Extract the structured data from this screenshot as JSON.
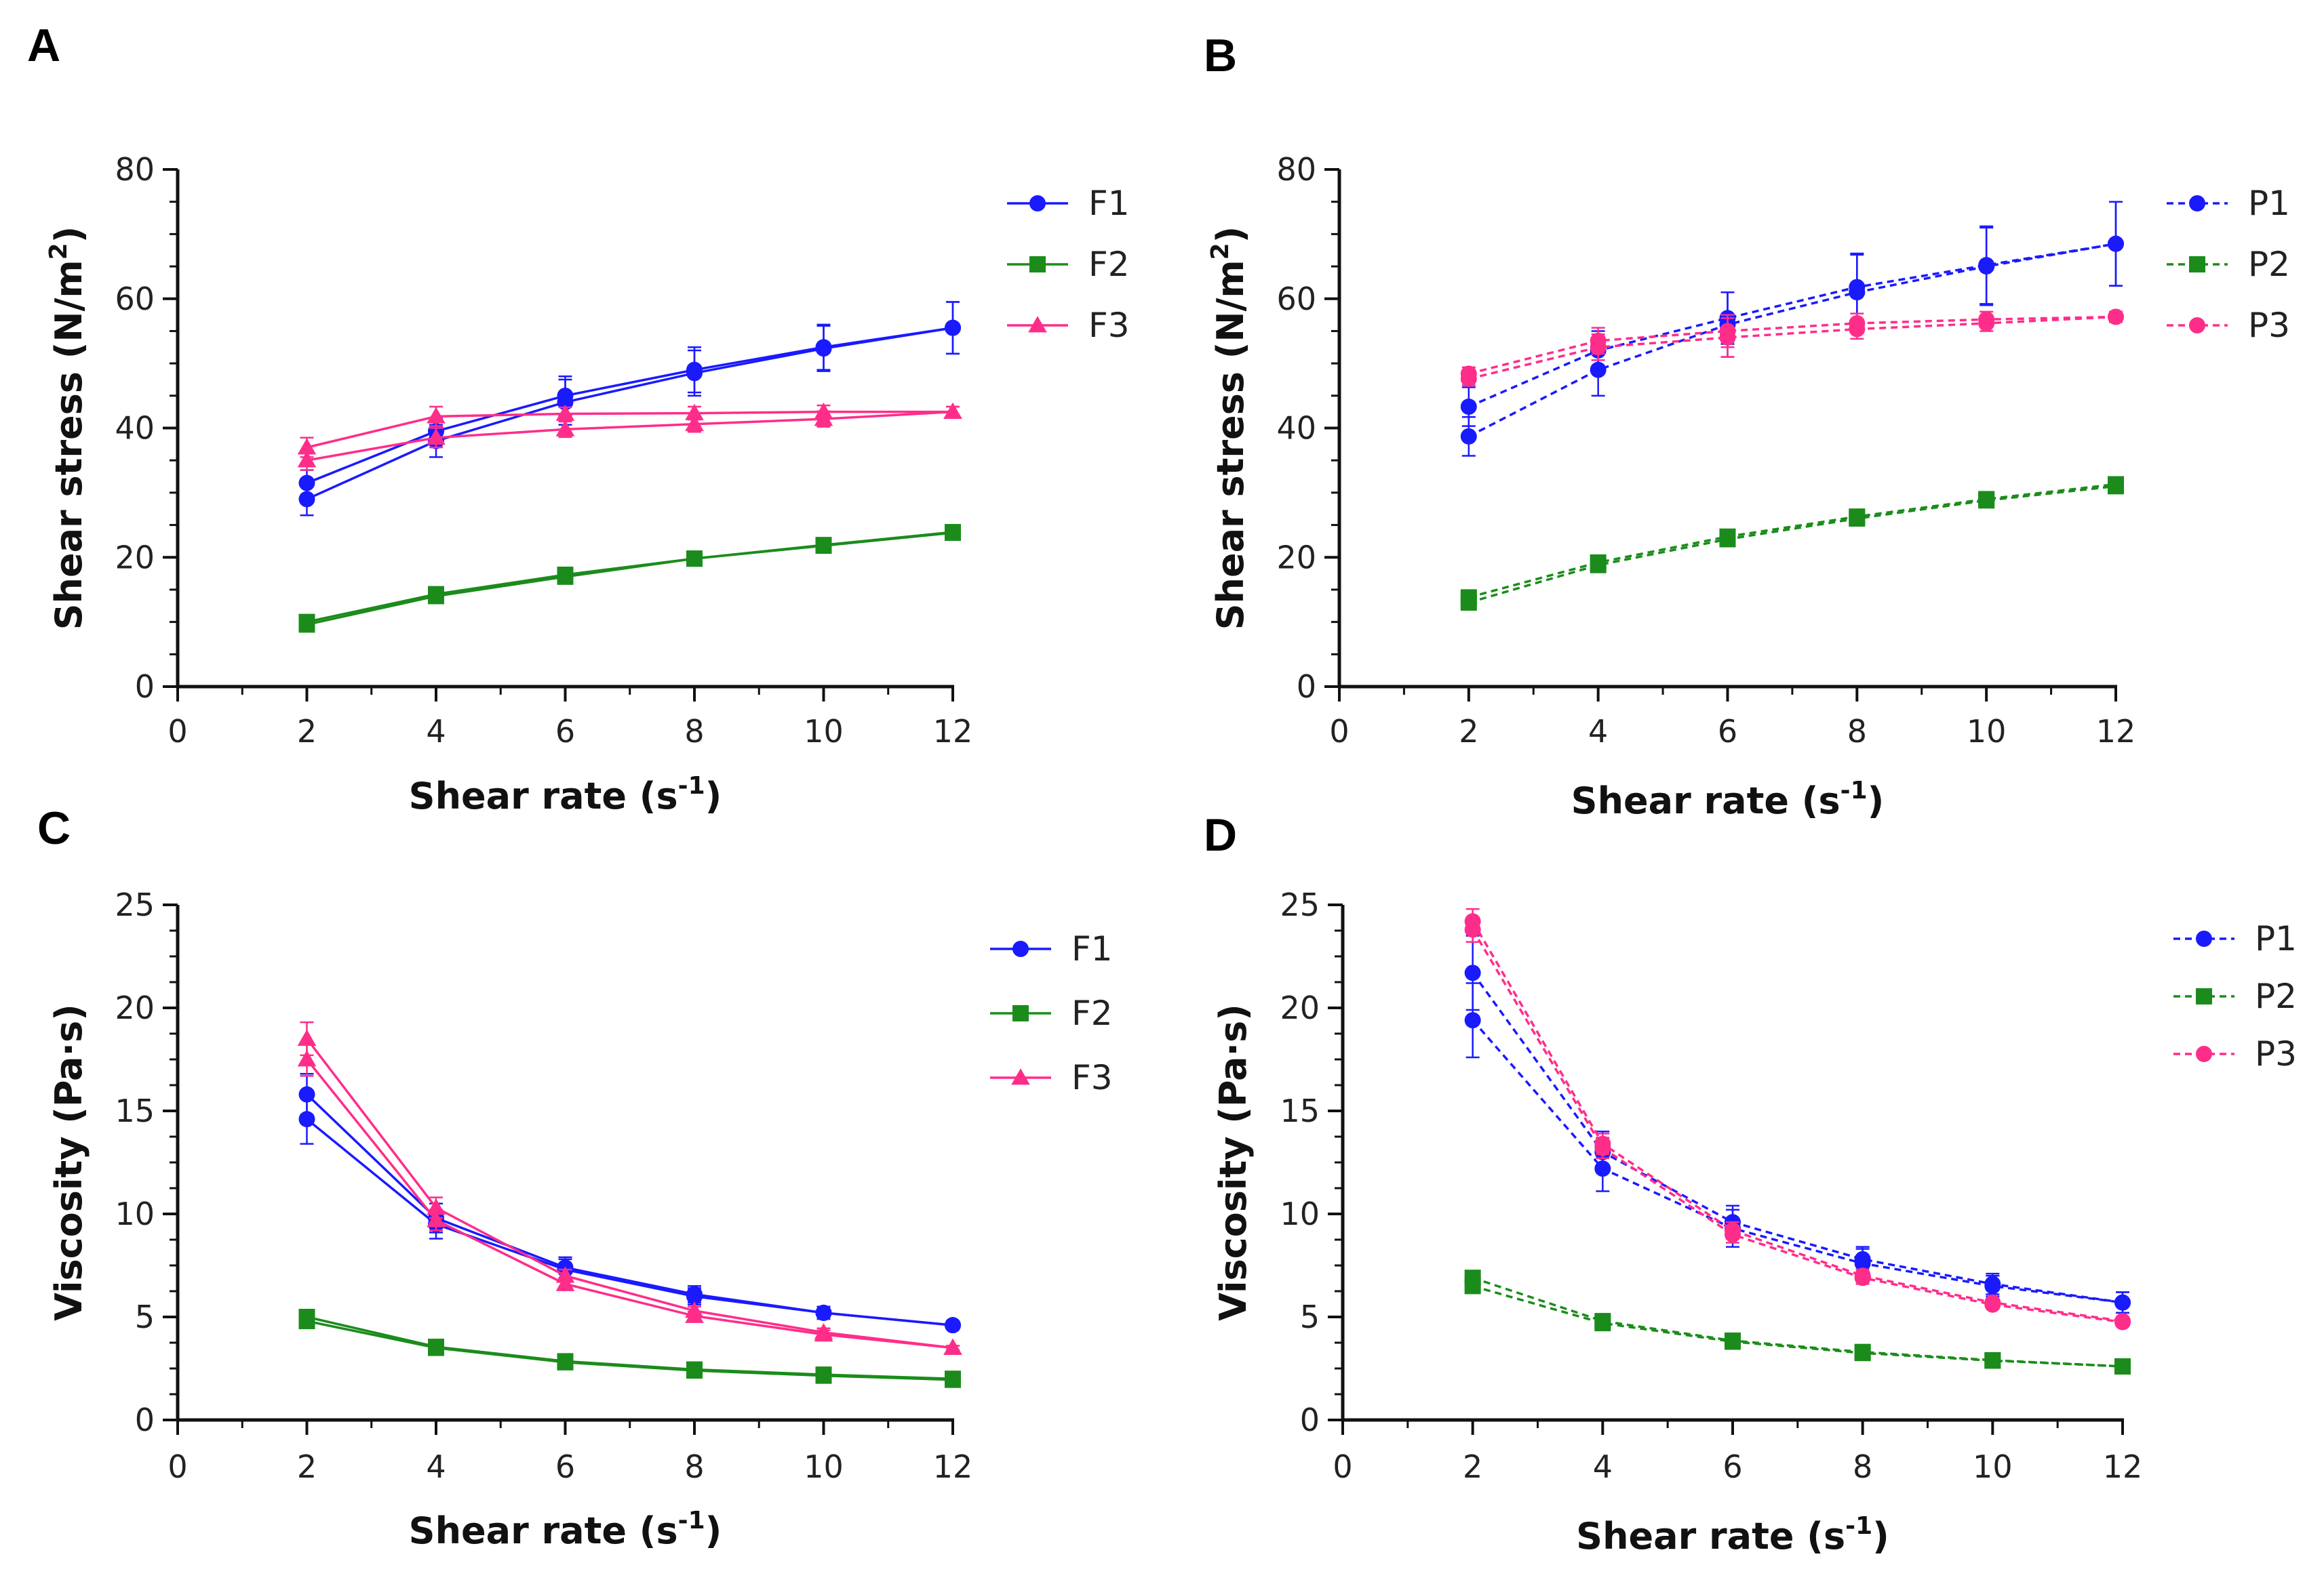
{
  "chart_data": [
    {
      "panel": "A",
      "type": "line",
      "xlabel": "Shear rate (s",
      "xlabel_sup": "-1",
      "xlabel_end": ")",
      "ylabel": "Shear stress (N/m",
      "ylabel_sup": "2",
      "ylabel_end": ")",
      "xlim": [
        0,
        12
      ],
      "ylim": [
        0,
        80
      ],
      "xticks": [
        0,
        2,
        4,
        6,
        8,
        10,
        12
      ],
      "yticks": [
        0,
        20,
        40,
        60,
        80
      ],
      "legend_position": "top-right",
      "series": [
        {
          "name": "F1",
          "color": "#1a1aff",
          "marker": "circle",
          "dash": false,
          "x": [
            2,
            4,
            6,
            8,
            10,
            12
          ],
          "y": [
            29,
            38,
            44,
            48.5,
            52.3,
            55.5
          ],
          "yerr": [
            2.5,
            2.5,
            3.5,
            3.5,
            3.5,
            4
          ]
        },
        {
          "name": "F1",
          "color": "#1a1aff",
          "marker": "circle",
          "dash": false,
          "legend": false,
          "x": [
            2,
            4,
            6,
            8,
            10,
            12
          ],
          "y": [
            31.5,
            39.5,
            45,
            49,
            52.5,
            55.5
          ],
          "yerr": [
            2,
            2,
            3,
            3.5,
            3.5,
            4
          ]
        },
        {
          "name": "F2",
          "color": "#1b8c1b",
          "marker": "square",
          "dash": false,
          "x": [
            2,
            4,
            6,
            8,
            10,
            12
          ],
          "y": [
            9.6,
            14,
            17,
            19.8,
            21.8,
            23.8
          ],
          "yerr": [
            0.5,
            0.5,
            0.5,
            0.5,
            0.5,
            0.5
          ]
        },
        {
          "name": "F2",
          "color": "#1b8c1b",
          "marker": "square",
          "dash": false,
          "legend": false,
          "x": [
            2,
            4,
            6,
            8,
            10,
            12
          ],
          "y": [
            10,
            14.3,
            17.3,
            19.8,
            21.9,
            23.9
          ],
          "yerr": [
            0.5,
            0.5,
            0.5,
            0.5,
            0.5,
            0.5
          ]
        },
        {
          "name": "F3",
          "color": "#ff2d8a",
          "marker": "triangle",
          "dash": false,
          "x": [
            2,
            4,
            6,
            8,
            10,
            12
          ],
          "y": [
            35,
            38.5,
            39.8,
            40.6,
            41.4,
            42.5
          ],
          "yerr": [
            1.5,
            1.5,
            1.2,
            1.2,
            1.2,
            0.8
          ]
        },
        {
          "name": "F3",
          "color": "#ff2d8a",
          "marker": "triangle",
          "dash": false,
          "legend": false,
          "x": [
            2,
            4,
            6,
            8,
            10,
            12
          ],
          "y": [
            37,
            41.8,
            42.2,
            42.3,
            42.5,
            42.5
          ],
          "yerr": [
            1.5,
            1.5,
            1,
            1,
            1,
            0.8
          ]
        }
      ]
    },
    {
      "panel": "B",
      "type": "line",
      "xlabel": "Shear rate (s",
      "xlabel_sup": "-1",
      "xlabel_end": ")",
      "ylabel": "Shear stress (N/m",
      "ylabel_sup": "2",
      "ylabel_end": ")",
      "xlim": [
        0,
        12
      ],
      "ylim": [
        0,
        80
      ],
      "xticks": [
        0,
        2,
        4,
        6,
        8,
        10,
        12
      ],
      "yticks": [
        0,
        20,
        40,
        60,
        80
      ],
      "legend_position": "top-right",
      "series": [
        {
          "name": "P1",
          "color": "#1a1aff",
          "marker": "circle",
          "dash": true,
          "x": [
            2,
            4,
            6,
            8,
            10,
            12
          ],
          "y": [
            38.7,
            49,
            56,
            61,
            65,
            68.5
          ],
          "yerr": [
            3,
            4,
            5,
            6,
            6,
            6.5
          ]
        },
        {
          "name": "P1",
          "color": "#1a1aff",
          "marker": "circle",
          "dash": true,
          "legend": false,
          "x": [
            2,
            4,
            6,
            8,
            10,
            12
          ],
          "y": [
            43.3,
            52,
            57,
            61.8,
            65.2,
            68.5
          ],
          "yerr": [
            3,
            3,
            4,
            5,
            6,
            6.5
          ]
        },
        {
          "name": "P2",
          "color": "#1b8c1b",
          "marker": "square",
          "dash": true,
          "x": [
            2,
            4,
            6,
            8,
            10,
            12
          ],
          "y": [
            13,
            18.8,
            22.8,
            26,
            28.8,
            31
          ],
          "yerr": [
            0.6,
            0.6,
            0.6,
            0.6,
            0.6,
            0.8
          ]
        },
        {
          "name": "P2",
          "color": "#1b8c1b",
          "marker": "square",
          "dash": true,
          "legend": false,
          "x": [
            2,
            4,
            6,
            8,
            10,
            12
          ],
          "y": [
            13.8,
            19.2,
            23.2,
            26.3,
            29,
            31.3
          ],
          "yerr": [
            0.6,
            0.6,
            0.6,
            0.6,
            0.6,
            0.8
          ]
        },
        {
          "name": "P3",
          "color": "#ff2d8a",
          "marker": "circle",
          "dash": true,
          "x": [
            2,
            4,
            6,
            8,
            10,
            12
          ],
          "y": [
            47.6,
            52.5,
            54,
            55.3,
            56.2,
            57.2
          ],
          "yerr": [
            1,
            2,
            3,
            1.5,
            1.2,
            0.8
          ]
        },
        {
          "name": "P3",
          "color": "#ff2d8a",
          "marker": "circle",
          "dash": true,
          "legend": false,
          "x": [
            2,
            4,
            6,
            8,
            10,
            12
          ],
          "y": [
            48.4,
            53.5,
            55,
            56.2,
            56.8,
            57.2
          ],
          "yerr": [
            1,
            2,
            2.5,
            1.5,
            1.2,
            0.8
          ]
        }
      ]
    },
    {
      "panel": "C",
      "type": "line",
      "xlabel": "Shear rate (s",
      "xlabel_sup": "-1",
      "xlabel_end": ")",
      "ylabel": "Viscosity (Pa·s)",
      "ylabel_sup": "",
      "ylabel_end": "",
      "xlim": [
        0,
        12
      ],
      "ylim": [
        0,
        25
      ],
      "xticks": [
        0,
        2,
        4,
        6,
        8,
        10,
        12
      ],
      "yticks": [
        0,
        5,
        10,
        15,
        20,
        25
      ],
      "legend_position": "right",
      "series": [
        {
          "name": "F1",
          "color": "#1a1aff",
          "marker": "circle",
          "dash": false,
          "x": [
            2,
            4,
            6,
            8,
            10,
            12
          ],
          "y": [
            14.6,
            9.5,
            7.3,
            6,
            5.2,
            4.6
          ],
          "yerr": [
            1.2,
            0.7,
            0.5,
            0.4,
            0.3,
            0.2
          ]
        },
        {
          "name": "F1",
          "color": "#1a1aff",
          "marker": "circle",
          "dash": false,
          "legend": false,
          "x": [
            2,
            4,
            6,
            8,
            10,
            12
          ],
          "y": [
            15.8,
            9.8,
            7.4,
            6.1,
            5.2,
            4.6
          ],
          "yerr": [
            1,
            0.7,
            0.5,
            0.4,
            0.3,
            0.2
          ]
        },
        {
          "name": "F2",
          "color": "#1b8c1b",
          "marker": "square",
          "dash": false,
          "x": [
            2,
            4,
            6,
            8,
            10,
            12
          ],
          "y": [
            4.8,
            3.5,
            2.8,
            2.4,
            2.15,
            1.95
          ],
          "yerr": [
            0.2,
            0.2,
            0.1,
            0.1,
            0.1,
            0.1
          ]
        },
        {
          "name": "F2",
          "color": "#1b8c1b",
          "marker": "square",
          "dash": false,
          "legend": false,
          "x": [
            2,
            4,
            6,
            8,
            10,
            12
          ],
          "y": [
            5,
            3.55,
            2.85,
            2.45,
            2.2,
            2
          ],
          "yerr": [
            0.2,
            0.2,
            0.1,
            0.1,
            0.1,
            0.1
          ]
        },
        {
          "name": "F3",
          "color": "#ff2d8a",
          "marker": "triangle",
          "dash": false,
          "x": [
            2,
            4,
            6,
            8,
            10,
            12
          ],
          "y": [
            17.5,
            9.7,
            6.6,
            5.05,
            4.15,
            3.5
          ],
          "yerr": [
            0.8,
            0.5,
            0.3,
            0.2,
            0.2,
            0.1
          ]
        },
        {
          "name": "F3",
          "color": "#ff2d8a",
          "marker": "triangle",
          "dash": false,
          "legend": false,
          "x": [
            2,
            4,
            6,
            8,
            10,
            12
          ],
          "y": [
            18.5,
            10.3,
            7,
            5.3,
            4.25,
            3.5
          ],
          "yerr": [
            0.8,
            0.5,
            0.3,
            0.2,
            0.2,
            0.1
          ]
        }
      ]
    },
    {
      "panel": "D",
      "type": "line",
      "xlabel": "Shear rate (s",
      "xlabel_sup": "-1",
      "xlabel_end": ")",
      "ylabel": "Viscosity (Pa·s)",
      "ylabel_sup": "",
      "ylabel_end": "",
      "xlim": [
        0,
        12
      ],
      "ylim": [
        0,
        25
      ],
      "xticks": [
        0,
        2,
        4,
        6,
        8,
        10,
        12
      ],
      "yticks": [
        0,
        5,
        10,
        15,
        20,
        25
      ],
      "legend_position": "top-right",
      "series": [
        {
          "name": "P1",
          "color": "#1a1aff",
          "marker": "circle",
          "dash": true,
          "x": [
            2,
            4,
            6,
            8,
            10,
            12
          ],
          "y": [
            19.4,
            12.2,
            9.3,
            7.6,
            6.5,
            5.7
          ],
          "yerr": [
            1.8,
            1.1,
            0.9,
            0.7,
            0.5,
            0.5
          ]
        },
        {
          "name": "P1",
          "color": "#1a1aff",
          "marker": "circle",
          "dash": true,
          "legend": false,
          "x": [
            2,
            4,
            6,
            8,
            10,
            12
          ],
          "y": [
            21.7,
            13,
            9.6,
            7.8,
            6.6,
            5.7
          ],
          "yerr": [
            1.8,
            1,
            0.8,
            0.6,
            0.5,
            0.5
          ]
        },
        {
          "name": "P2",
          "color": "#1b8c1b",
          "marker": "square",
          "dash": true,
          "x": [
            2,
            4,
            6,
            8,
            10,
            12
          ],
          "y": [
            6.5,
            4.7,
            3.8,
            3.25,
            2.88,
            2.6
          ],
          "yerr": [
            0.2,
            0.2,
            0.1,
            0.1,
            0.1,
            0.1
          ]
        },
        {
          "name": "P2",
          "color": "#1b8c1b",
          "marker": "square",
          "dash": true,
          "legend": false,
          "x": [
            2,
            4,
            6,
            8,
            10,
            12
          ],
          "y": [
            6.9,
            4.8,
            3.85,
            3.3,
            2.9,
            2.6
          ],
          "yerr": [
            0.2,
            0.2,
            0.1,
            0.1,
            0.1,
            0.1
          ]
        },
        {
          "name": "P3",
          "color": "#ff2d8a",
          "marker": "circle",
          "dash": true,
          "x": [
            2,
            4,
            6,
            8,
            10,
            12
          ],
          "y": [
            23.8,
            13.2,
            9.0,
            6.9,
            5.6,
            4.75
          ],
          "yerr": [
            0.6,
            0.5,
            0.4,
            0.3,
            0.2,
            0.2
          ]
        },
        {
          "name": "P3",
          "color": "#ff2d8a",
          "marker": "circle",
          "dash": true,
          "legend": false,
          "x": [
            2,
            4,
            6,
            8,
            10,
            12
          ],
          "y": [
            24.2,
            13.4,
            9.2,
            7.0,
            5.7,
            4.8
          ],
          "yerr": [
            0.6,
            0.5,
            0.4,
            0.3,
            0.2,
            0.2
          ]
        }
      ]
    }
  ]
}
